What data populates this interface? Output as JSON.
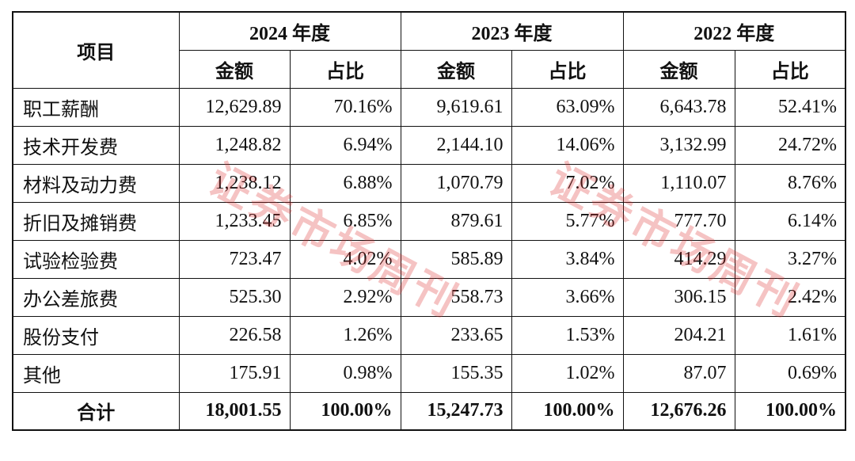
{
  "table": {
    "header": {
      "item": "项目",
      "years": [
        "2024 年度",
        "2023 年度",
        "2022 年度"
      ],
      "sub": [
        "金额",
        "占比"
      ]
    },
    "rows": [
      [
        "职工薪酬",
        "12,629.89",
        "70.16%",
        "9,619.61",
        "63.09%",
        "6,643.78",
        "52.41%"
      ],
      [
        "技术开发费",
        "1,248.82",
        "6.94%",
        "2,144.10",
        "14.06%",
        "3,132.99",
        "24.72%"
      ],
      [
        "材料及动力费",
        "1,238.12",
        "6.88%",
        "1,070.79",
        "7.02%",
        "1,110.07",
        "8.76%"
      ],
      [
        "折旧及摊销费",
        "1,233.45",
        "6.85%",
        "879.61",
        "5.77%",
        "777.70",
        "6.14%"
      ],
      [
        "试验检验费",
        "723.47",
        "4.02%",
        "585.89",
        "3.84%",
        "414.29",
        "3.27%"
      ],
      [
        "办公差旅费",
        "525.30",
        "2.92%",
        "558.73",
        "3.66%",
        "306.15",
        "2.42%"
      ],
      [
        "股份支付",
        "226.58",
        "1.26%",
        "233.65",
        "1.53%",
        "204.21",
        "1.61%"
      ],
      [
        "其他",
        "175.91",
        "0.98%",
        "155.35",
        "1.02%",
        "87.07",
        "0.69%"
      ]
    ],
    "total": [
      "合计",
      "18,001.55",
      "100.00%",
      "15,247.73",
      "100.00%",
      "12,676.26",
      "100.00%"
    ]
  },
  "watermark": "证券市场周刊"
}
